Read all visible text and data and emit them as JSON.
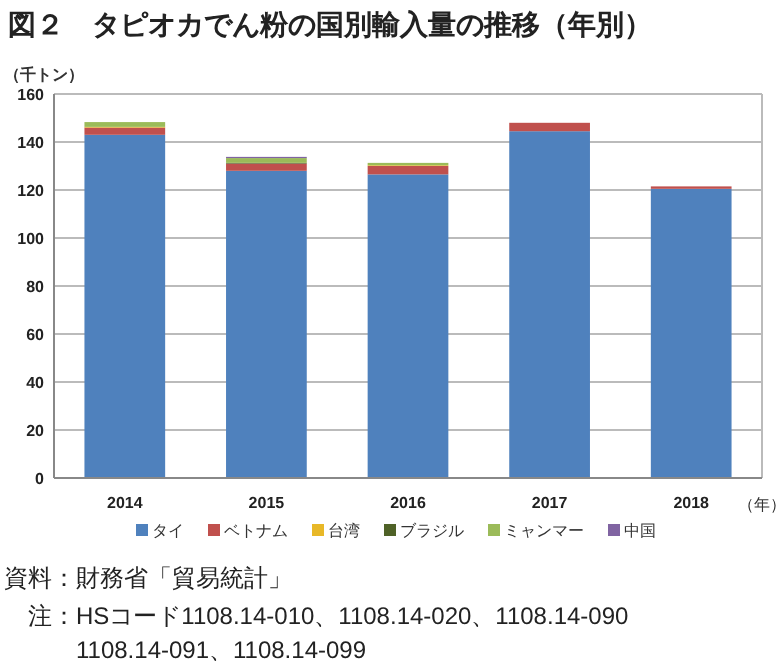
{
  "chart_data": {
    "type": "bar",
    "stacked": true,
    "title": "図２　タピオカでん粉の国別輸入量の推移（年別）",
    "ylabel": "（千トン）",
    "xlabel": "（年）",
    "categories": [
      "2014",
      "2015",
      "2016",
      "2017",
      "2018"
    ],
    "series": [
      {
        "name": "タイ",
        "color": "#4f81bd",
        "values": [
          143,
          128,
          126.5,
          144.5,
          120.5
        ]
      },
      {
        "name": "ベトナム",
        "color": "#c0504d",
        "values": [
          3,
          3,
          3.5,
          3.5,
          1
        ]
      },
      {
        "name": "台湾",
        "color": "#e8b828",
        "values": [
          0.3,
          0,
          0.3,
          0,
          0
        ]
      },
      {
        "name": "ブラジル",
        "color": "#4f6228",
        "values": [
          0,
          0.3,
          0,
          0,
          0
        ]
      },
      {
        "name": "ミャンマー",
        "color": "#9bbb59",
        "values": [
          2,
          2,
          1,
          0,
          0
        ]
      },
      {
        "name": "中国",
        "color": "#8064a2",
        "values": [
          0,
          0.5,
          0,
          0,
          0
        ]
      }
    ],
    "ylim": [
      0,
      160
    ],
    "yticks": [
      0,
      20,
      40,
      60,
      80,
      100,
      120,
      140,
      160
    ],
    "grid": "y",
    "legend": "bottom",
    "annotations": [
      "資料：財務省「貿易統計」",
      "注：HSコード1108.14-010、1108.14-020、1108.14-090",
      "1108.14-091、1108.14-099"
    ]
  }
}
